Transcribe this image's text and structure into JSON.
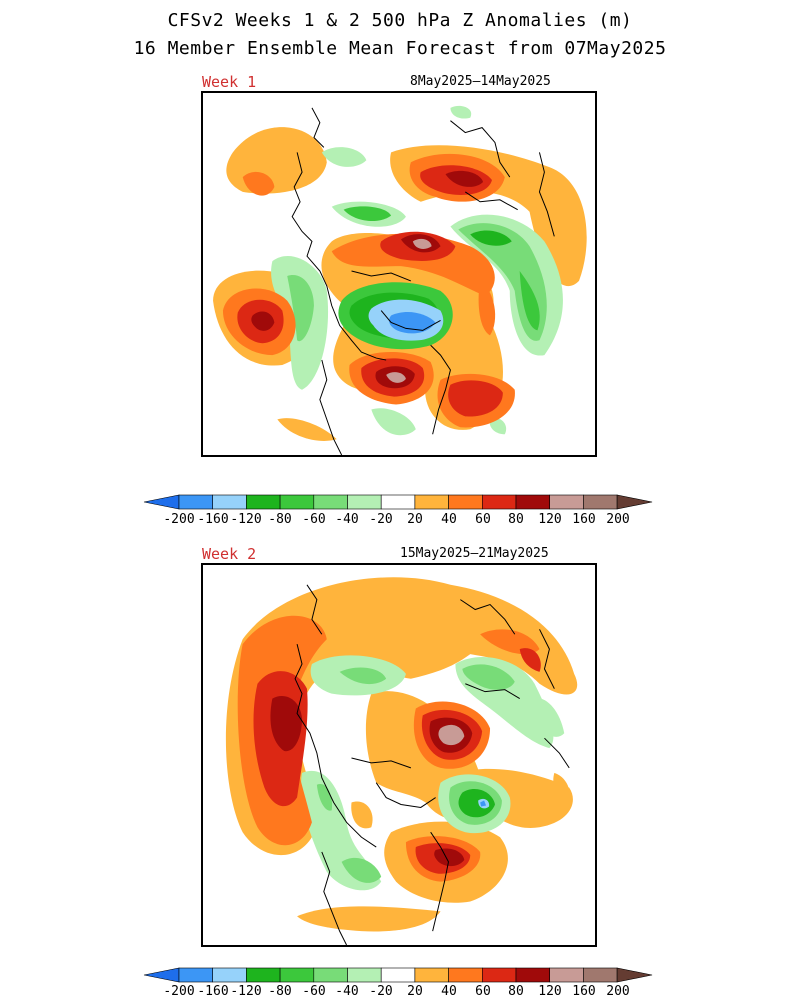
{
  "title": {
    "line1": "CFSv2 Weeks 1 & 2 500 hPa Z Anomalies (m)",
    "line2": "16 Member Ensemble Mean Forecast from 07May2025"
  },
  "panels": [
    {
      "label": "Week 1",
      "dates": "8May2025—14May2025"
    },
    {
      "label": "Week 2",
      "dates": "15May2025—21May2025"
    }
  ],
  "colorbar": {
    "labels": [
      "-200",
      "-160",
      "-120",
      "-80",
      "-60",
      "-40",
      "-20",
      "20",
      "40",
      "60",
      "80",
      "120",
      "160",
      "200"
    ],
    "colors": {
      "below_min": "#1e6eeb",
      "n200_n160": "#3c96f5",
      "n160_n120": "#96d2fa",
      "n120_n80": "#1eb41e",
      "n80_n60": "#3cc83c",
      "n60_n40": "#78dc78",
      "n40_n20": "#b4f0b4",
      "n20_p20": "#ffffff",
      "p20_p40": "#ffb43c",
      "p40_p60": "#ff781e",
      "p60_p80": "#dc2814",
      "p80_p120": "#a00a0a",
      "p120_p160": "#c89b96",
      "p160_p200": "#a0786e",
      "above_max": "#643c32"
    }
  }
}
